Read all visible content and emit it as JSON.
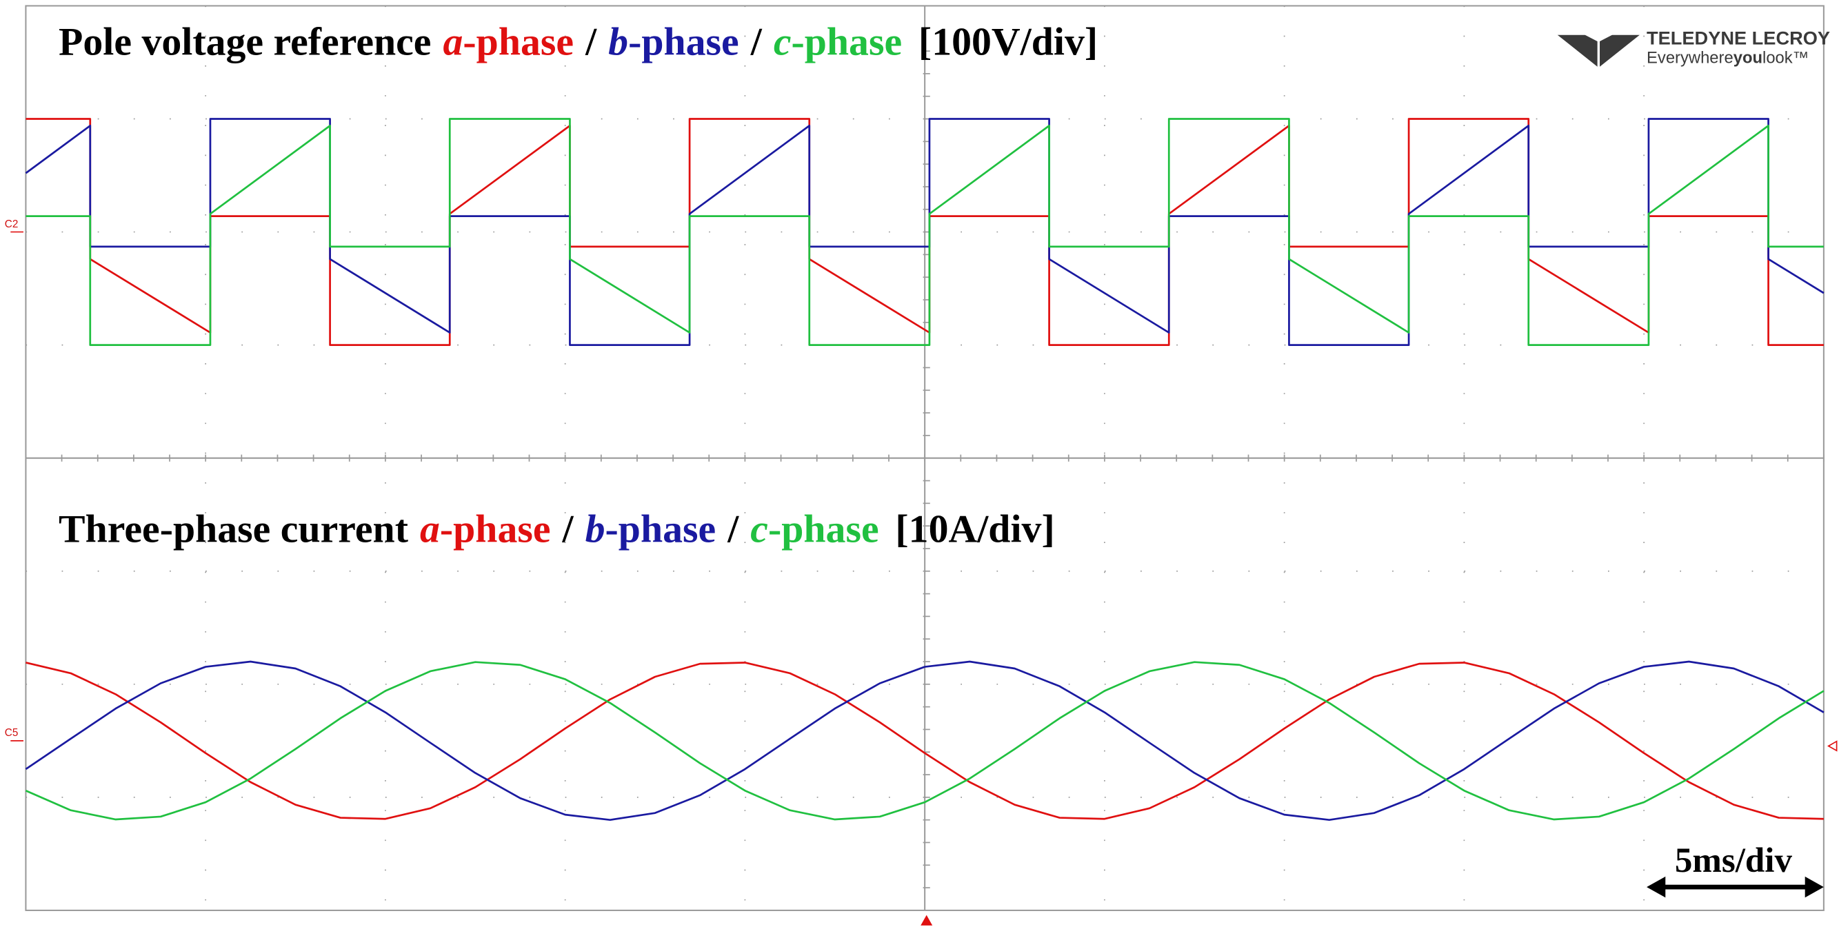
{
  "chart_data": [
    {
      "type": "line",
      "title": "Pole voltage reference",
      "separator": "/",
      "scale_label": "[100V/div]",
      "channel": "C2",
      "xlim": [
        0,
        50
      ],
      "ylim": [
        -200,
        200
      ],
      "series": [
        {
          "name": "a-phase",
          "color": "#e01010",
          "x": [
            0,
            1.79,
            1.79,
            5.13,
            5.13,
            8.46,
            8.46,
            11.79,
            11.79,
            15.13,
            15.13,
            18.46,
            18.46,
            21.79,
            21.79,
            25.13,
            25.13,
            28.46,
            28.46,
            31.79,
            31.79,
            35.13,
            35.13,
            38.46,
            38.46,
            41.79,
            41.79,
            45.13,
            45.13,
            48.46,
            48.46,
            50
          ],
          "values": [
            100,
            100,
            -24,
            -89,
            14,
            14,
            -100,
            -100,
            16,
            94,
            -13,
            -13,
            100,
            100,
            -24,
            -89,
            14,
            14,
            -100,
            -100,
            16,
            94,
            -13,
            -13,
            100,
            100,
            -24,
            -89,
            14,
            14,
            -100,
            -100
          ]
        },
        {
          "name": "b-phase",
          "color": "#1a1aa0",
          "x": [
            0,
            1.79,
            1.79,
            5.13,
            5.13,
            8.46,
            8.46,
            11.79,
            11.79,
            15.13,
            15.13,
            18.46,
            18.46,
            21.79,
            21.79,
            25.13,
            25.13,
            28.46,
            28.46,
            31.79,
            31.79,
            35.13,
            35.13,
            38.46,
            38.46,
            41.79,
            41.79,
            45.13,
            45.13,
            48.46,
            48.46,
            50
          ],
          "values": [
            52,
            94,
            -13,
            -13,
            100,
            100,
            -24,
            -89,
            14,
            14,
            -100,
            -100,
            16,
            94,
            -13,
            -13,
            100,
            100,
            -24,
            -89,
            14,
            14,
            -100,
            -100,
            16,
            94,
            -13,
            -13,
            100,
            100,
            -24,
            -54
          ]
        },
        {
          "name": "c-phase",
          "color": "#20c040",
          "x": [
            0,
            1.79,
            1.79,
            5.13,
            5.13,
            8.46,
            8.46,
            11.79,
            11.79,
            15.13,
            15.13,
            18.46,
            18.46,
            21.79,
            21.79,
            25.13,
            25.13,
            28.46,
            28.46,
            31.79,
            31.79,
            35.13,
            35.13,
            38.46,
            38.46,
            41.79,
            41.79,
            45.13,
            45.13,
            48.46,
            48.46,
            50
          ],
          "values": [
            14,
            14,
            -100,
            -100,
            16,
            94,
            -13,
            -13,
            100,
            100,
            -24,
            -89,
            14,
            14,
            -100,
            -100,
            16,
            94,
            -13,
            -13,
            100,
            100,
            -24,
            -89,
            14,
            14,
            -100,
            -100,
            16,
            94,
            -13,
            -13
          ]
        }
      ]
    },
    {
      "type": "line",
      "title": "Three-phase current",
      "separator": "/",
      "scale_label": "[10A/div]",
      "channel": "C5",
      "xlim": [
        0,
        50
      ],
      "ylim": [
        -15,
        25
      ],
      "x": [
        0,
        1.25,
        2.5,
        3.75,
        5,
        6.25,
        7.5,
        8.75,
        10,
        11.25,
        12.5,
        13.75,
        15,
        16.25,
        17.5,
        18.75,
        20,
        21.25,
        22.5,
        23.75,
        25,
        26.25,
        27.5,
        28.75,
        30,
        31.25,
        32.5,
        33.75,
        35,
        36.25,
        37.5,
        38.75,
        40,
        41.25,
        42.5,
        43.75,
        45,
        46.25,
        47.5,
        48.75,
        50
      ],
      "series": [
        {
          "name": "a-phase",
          "color": "#e01010",
          "values": [
            6.91,
            5.97,
            4.11,
            1.63,
            -1.09,
            -3.66,
            -5.66,
            -6.81,
            -6.91,
            -5.97,
            -4.11,
            -1.63,
            1.09,
            3.66,
            5.66,
            6.81,
            6.91,
            5.97,
            4.11,
            1.63,
            -1.09,
            -3.66,
            -5.66,
            -6.81,
            -6.91,
            -5.97,
            -4.11,
            -1.63,
            1.09,
            3.66,
            5.66,
            6.81,
            6.91,
            5.97,
            4.11,
            1.63,
            -1.09,
            -3.66,
            -5.66,
            -6.81,
            -6.91
          ]
        },
        {
          "name": "b-phase",
          "color": "#1a1aa0",
          "values": [
            -2.51,
            0.18,
            2.85,
            5.08,
            6.54,
            7.0,
            6.39,
            4.82,
            2.51,
            -0.18,
            -2.85,
            -5.08,
            -6.54,
            -7.0,
            -6.39,
            -4.82,
            -2.51,
            0.18,
            2.85,
            5.08,
            6.54,
            7.0,
            6.39,
            4.82,
            2.51,
            -0.18,
            -2.85,
            -5.08,
            -6.54,
            -7.0,
            -6.39,
            -4.82,
            -2.51,
            0.18,
            2.85,
            5.08,
            6.54,
            7.0,
            6.39,
            4.82,
            2.51
          ]
        },
        {
          "name": "c-phase",
          "color": "#20c040",
          "values": [
            -4.41,
            -6.15,
            -6.96,
            -6.71,
            -5.44,
            -3.34,
            -0.73,
            1.99,
            4.41,
            6.15,
            6.96,
            6.71,
            5.44,
            3.34,
            0.73,
            -1.99,
            -4.41,
            -6.15,
            -6.96,
            -6.71,
            -5.44,
            -3.34,
            -0.73,
            1.99,
            4.41,
            6.15,
            6.96,
            6.71,
            5.44,
            3.34,
            0.73,
            -1.99,
            -4.41,
            -6.15,
            -6.96,
            -6.71,
            -5.44,
            -3.34,
            -0.73,
            1.99,
            4.41
          ]
        }
      ]
    }
  ],
  "time_scale": "5ms/div",
  "logo": {
    "brand": "TELEDYNE LECROY",
    "tagline": [
      "Everywhere",
      "you",
      "look™"
    ]
  }
}
